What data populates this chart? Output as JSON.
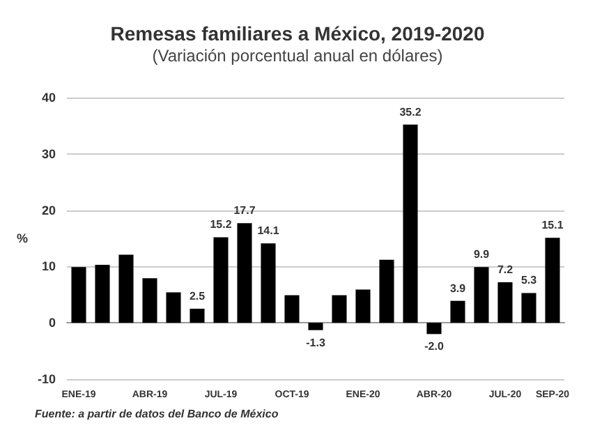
{
  "chart_data": {
    "type": "bar",
    "title": "Remesas familiares a México, 2019-2020",
    "subtitle": "(Variación porcentual anual en dólares)",
    "ylabel": "%",
    "categories": [
      "ENE-19",
      null,
      null,
      "ABR-19",
      null,
      null,
      "JUL-19",
      null,
      null,
      "OCT-19",
      null,
      null,
      "ENE-20",
      null,
      null,
      "ABR-20",
      null,
      null,
      "JUL-20",
      null,
      "SEP-20"
    ],
    "values": [
      9.9,
      10.3,
      12.1,
      7.9,
      5.4,
      2.5,
      15.2,
      17.7,
      14.1,
      4.9,
      -1.3,
      4.9,
      5.9,
      11.2,
      35.2,
      -2.0,
      3.9,
      9.9,
      7.2,
      5.3,
      15.1
    ],
    "value_labels": [
      null,
      null,
      null,
      null,
      null,
      "2.5",
      "15.2",
      "17.7",
      "14.1",
      null,
      "-1.3",
      null,
      null,
      null,
      "35.2",
      "-2.0",
      "3.9",
      "9.9",
      "7.2",
      "5.3",
      "15.1"
    ],
    "color": "#000000",
    "ylim": [
      -10,
      40
    ],
    "yticks": [
      -10,
      0,
      10,
      20,
      30,
      40
    ],
    "grid": "y",
    "annotations": [
      "Fuente: a partir de datos del Banco de México"
    ]
  }
}
